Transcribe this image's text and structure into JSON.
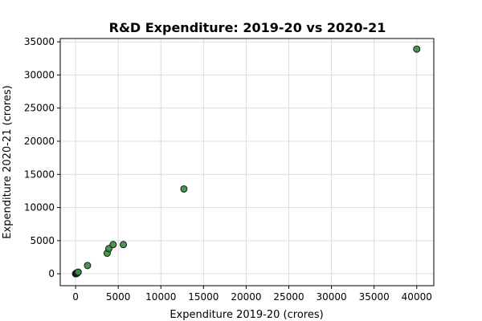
{
  "chart_data": {
    "type": "scatter",
    "title": "R&D Expenditure: 2019-20 vs 2020-21",
    "xlabel": "Expenditure 2019-20 (crores)",
    "ylabel": "Expenditure 2020-21 (crores)",
    "xlim": [
      -1800,
      42000
    ],
    "ylim": [
      -1800,
      35500
    ],
    "xticks": [
      0,
      5000,
      10000,
      15000,
      20000,
      25000,
      30000,
      35000,
      40000
    ],
    "yticks": [
      0,
      5000,
      10000,
      15000,
      20000,
      25000,
      30000,
      35000
    ],
    "grid": true,
    "marker_color": "#3a8a3a",
    "marker_edge_color": "#1a1a1a",
    "points": [
      {
        "x": 0,
        "y": 0
      },
      {
        "x": 20,
        "y": 40
      },
      {
        "x": 50,
        "y": 80
      },
      {
        "x": 80,
        "y": 20
      },
      {
        "x": 120,
        "y": 110
      },
      {
        "x": 150,
        "y": 60
      },
      {
        "x": 200,
        "y": 150
      },
      {
        "x": 250,
        "y": 200
      },
      {
        "x": 300,
        "y": 250
      },
      {
        "x": 1400,
        "y": 1250
      },
      {
        "x": 3700,
        "y": 3100
      },
      {
        "x": 3900,
        "y": 3800
      },
      {
        "x": 4400,
        "y": 4400
      },
      {
        "x": 5600,
        "y": 4400
      },
      {
        "x": 12700,
        "y": 12800
      },
      {
        "x": 40000,
        "y": 33900
      }
    ]
  }
}
